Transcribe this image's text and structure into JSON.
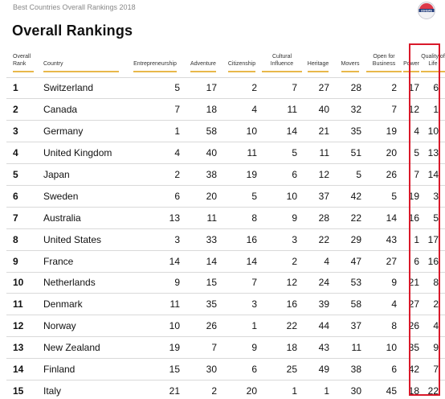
{
  "header": {
    "source_label": "Best Countries Overall Rankings 2018",
    "logo_text": "USNEWS"
  },
  "page_title": "Overall Rankings",
  "table": {
    "headers": [
      "Overall Rank",
      "Country",
      "Entrepreneurship",
      "Adventure",
      "Citizenship",
      "Cultural Influence",
      "Heritage",
      "Movers",
      "Open for Business",
      "Power",
      "Quality of Life"
    ],
    "rows": [
      [
        "1",
        "Switzerland",
        "5",
        "17",
        "2",
        "7",
        "27",
        "28",
        "2",
        "17",
        "6"
      ],
      [
        "2",
        "Canada",
        "7",
        "18",
        "4",
        "11",
        "40",
        "32",
        "7",
        "12",
        "1"
      ],
      [
        "3",
        "Germany",
        "1",
        "58",
        "10",
        "14",
        "21",
        "35",
        "19",
        "4",
        "10"
      ],
      [
        "4",
        "United Kingdom",
        "4",
        "40",
        "11",
        "5",
        "11",
        "51",
        "20",
        "5",
        "13"
      ],
      [
        "5",
        "Japan",
        "2",
        "38",
        "19",
        "6",
        "12",
        "5",
        "26",
        "7",
        "14"
      ],
      [
        "6",
        "Sweden",
        "6",
        "20",
        "5",
        "10",
        "37",
        "42",
        "5",
        "19",
        "3"
      ],
      [
        "7",
        "Australia",
        "13",
        "11",
        "8",
        "9",
        "28",
        "22",
        "14",
        "16",
        "5"
      ],
      [
        "8",
        "United States",
        "3",
        "33",
        "16",
        "3",
        "22",
        "29",
        "43",
        "1",
        "17"
      ],
      [
        "9",
        "France",
        "14",
        "14",
        "14",
        "2",
        "4",
        "47",
        "27",
        "6",
        "16"
      ],
      [
        "10",
        "Netherlands",
        "9",
        "15",
        "7",
        "12",
        "24",
        "53",
        "9",
        "21",
        "8"
      ],
      [
        "11",
        "Denmark",
        "11",
        "35",
        "3",
        "16",
        "39",
        "58",
        "4",
        "27",
        "2"
      ],
      [
        "12",
        "Norway",
        "10",
        "26",
        "1",
        "22",
        "44",
        "37",
        "8",
        "26",
        "4"
      ],
      [
        "13",
        "New Zealand",
        "19",
        "7",
        "9",
        "18",
        "43",
        "11",
        "10",
        "35",
        "9"
      ],
      [
        "14",
        "Finland",
        "15",
        "30",
        "6",
        "25",
        "49",
        "38",
        "6",
        "42",
        "7"
      ],
      [
        "15",
        "Italy",
        "21",
        "2",
        "20",
        "1",
        "1",
        "30",
        "45",
        "18",
        "22"
      ]
    ]
  },
  "colors": {
    "header_underline": "#e8b84a",
    "highlight_box": "#d9192a",
    "row_divider": "#d9d9d9"
  }
}
